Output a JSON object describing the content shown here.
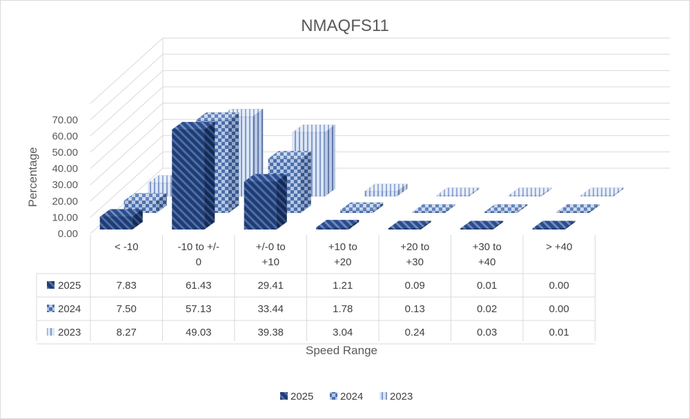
{
  "chart_data": {
    "type": "bar",
    "title": "NMAQFS11",
    "xlabel": "Speed Range",
    "ylabel": "Percentage",
    "ylim": [
      0,
      70
    ],
    "yticks": [
      "0.00",
      "10.00",
      "20.00",
      "30.00",
      "40.00",
      "50.00",
      "60.00",
      "70.00"
    ],
    "categories": [
      "< -10",
      "-10 to +/-\n0",
      "+/-0 to\n+10",
      "+10 to\n+20",
      "+20 to\n+30",
      "+30 to\n+40",
      "> +40"
    ],
    "series": [
      {
        "name": "2025",
        "values": [
          7.83,
          61.43,
          29.41,
          1.21,
          0.09,
          0.01,
          0.0
        ],
        "labels": [
          "7.83",
          "61.43",
          "29.41",
          "1.21",
          "0.09",
          "0.01",
          "0.00"
        ]
      },
      {
        "name": "2024",
        "values": [
          7.5,
          57.13,
          33.44,
          1.78,
          0.13,
          0.02,
          0.0
        ],
        "labels": [
          "7.50",
          "57.13",
          "33.44",
          "1.78",
          "0.13",
          "0.02",
          "0.00"
        ]
      },
      {
        "name": "2023",
        "values": [
          8.27,
          49.03,
          39.38,
          3.04,
          0.24,
          0.03,
          0.01
        ],
        "labels": [
          "8.27",
          "49.03",
          "39.38",
          "3.04",
          "0.24",
          "0.03",
          "0.01"
        ]
      }
    ],
    "legend_position": "bottom",
    "data_table": true,
    "grid": true
  },
  "colors": {
    "series_2025": "#2e4a86",
    "series_2024": "#8eaadb",
    "series_2023": "#b4c7e7",
    "gridline": "#d9d9d9",
    "text": "#595959"
  }
}
